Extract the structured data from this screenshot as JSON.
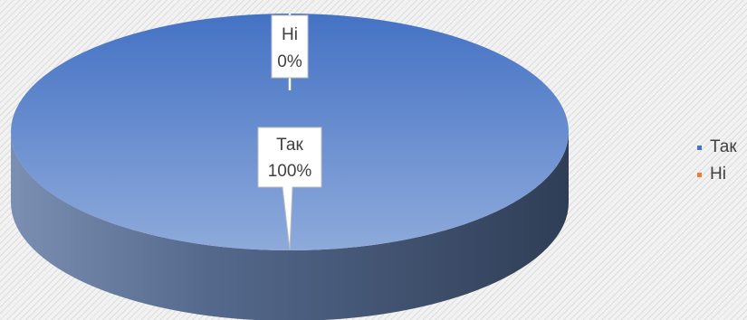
{
  "chart_data": {
    "type": "pie",
    "style": "3d",
    "categories": [
      "Так",
      "Ні"
    ],
    "values": [
      100,
      0
    ],
    "data_labels": [
      {
        "name": "Ні",
        "value": "0%"
      },
      {
        "name": "Так",
        "value": "100%"
      }
    ],
    "colors": {
      "Так": "#4472c4",
      "Ні": "#ed7d31",
      "slice_top_light": "#8eaadb",
      "slice_side_dark": "#2f3e56"
    },
    "legend": {
      "position": "right",
      "items": [
        {
          "label": "Так",
          "color": "#4472c4"
        },
        {
          "label": "Ні",
          "color": "#ed7d31"
        }
      ]
    }
  }
}
